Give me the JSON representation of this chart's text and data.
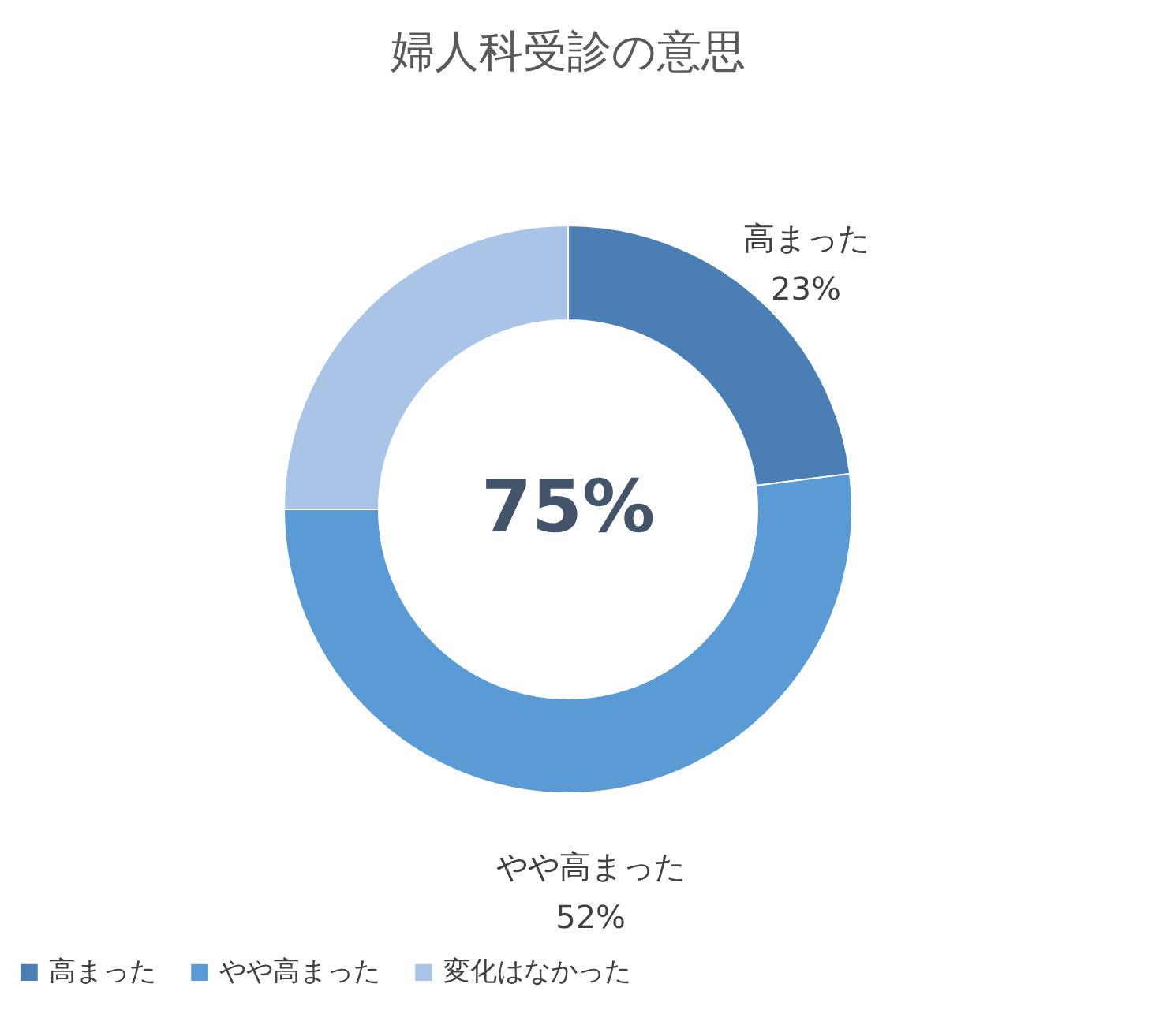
{
  "chart_data": {
    "type": "donut",
    "title": "婦人科受診の意思",
    "categories": [
      "高まった",
      "やや高まった",
      "変化はなかった"
    ],
    "values": [
      23,
      52,
      25
    ],
    "colors": [
      "#4a7eb4",
      "#5b9bd5",
      "#a9c4e6"
    ],
    "value_labels": [
      "23%",
      "52%",
      null
    ],
    "annotations": [
      "75%"
    ],
    "legend": "bottom"
  }
}
